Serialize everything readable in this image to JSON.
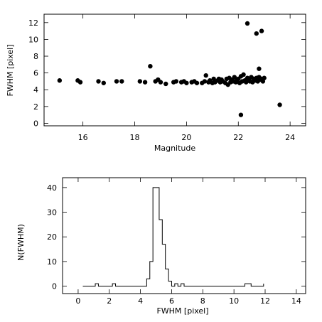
{
  "chart_data": [
    {
      "type": "scatter",
      "xlabel": "Magnitude",
      "ylabel": "FWHM [pixel]",
      "xlim": [
        14.5,
        24.6
      ],
      "ylim": [
        -0.3,
        13
      ],
      "x_ticks": [
        16,
        18,
        20,
        22,
        24
      ],
      "y_ticks": [
        0,
        2,
        4,
        6,
        8,
        10,
        12
      ],
      "grid": false,
      "points": [
        [
          15.1,
          5.1
        ],
        [
          15.8,
          5.1
        ],
        [
          15.9,
          4.9
        ],
        [
          16.6,
          5.0
        ],
        [
          16.8,
          4.8
        ],
        [
          17.3,
          5.0
        ],
        [
          17.5,
          5.0
        ],
        [
          18.2,
          5.0
        ],
        [
          18.4,
          4.9
        ],
        [
          18.6,
          6.8
        ],
        [
          18.8,
          5.0
        ],
        [
          18.9,
          5.2
        ],
        [
          19.0,
          4.9
        ],
        [
          19.2,
          4.7
        ],
        [
          19.5,
          4.9
        ],
        [
          19.6,
          5.0
        ],
        [
          19.8,
          4.9
        ],
        [
          19.9,
          5.0
        ],
        [
          20.0,
          4.8
        ],
        [
          20.2,
          4.9
        ],
        [
          20.3,
          5.0
        ],
        [
          20.4,
          4.8
        ],
        [
          20.6,
          4.8
        ],
        [
          20.7,
          5.0
        ],
        [
          20.75,
          5.7
        ],
        [
          20.85,
          4.9
        ],
        [
          20.9,
          5.1
        ],
        [
          21.0,
          4.8
        ],
        [
          21.05,
          5.3
        ],
        [
          21.1,
          4.9
        ],
        [
          21.2,
          5.1
        ],
        [
          21.25,
          5.3
        ],
        [
          21.3,
          4.9
        ],
        [
          21.35,
          5.2
        ],
        [
          21.4,
          5.0
        ],
        [
          21.5,
          4.8
        ],
        [
          21.55,
          5.3
        ],
        [
          21.6,
          4.6
        ],
        [
          21.65,
          5.4
        ],
        [
          21.7,
          4.9
        ],
        [
          21.75,
          5.2
        ],
        [
          21.8,
          5.0
        ],
        [
          21.85,
          5.5
        ],
        [
          21.9,
          4.9
        ],
        [
          21.95,
          5.2
        ],
        [
          22.0,
          5.3
        ],
        [
          22.05,
          4.8
        ],
        [
          22.1,
          5.6
        ],
        [
          22.15,
          5.0
        ],
        [
          22.2,
          5.8
        ],
        [
          22.25,
          5.1
        ],
        [
          22.3,
          4.9
        ],
        [
          22.35,
          5.4
        ],
        [
          22.4,
          5.2
        ],
        [
          22.45,
          5.0
        ],
        [
          22.5,
          5.5
        ],
        [
          22.55,
          4.9
        ],
        [
          22.6,
          5.3
        ],
        [
          22.65,
          5.1
        ],
        [
          22.7,
          5.4
        ],
        [
          22.75,
          5.0
        ],
        [
          22.8,
          5.5
        ],
        [
          22.85,
          5.2
        ],
        [
          22.9,
          5.3
        ],
        [
          22.95,
          5.0
        ],
        [
          23.0,
          5.4
        ],
        [
          22.8,
          6.5
        ],
        [
          22.35,
          11.9
        ],
        [
          22.7,
          10.7
        ],
        [
          22.9,
          11.0
        ],
        [
          22.1,
          1.0
        ],
        [
          23.6,
          2.2
        ]
      ]
    },
    {
      "type": "histogram",
      "xlabel": "FWHM [pixel]",
      "ylabel": "N(FWHM)",
      "xlim": [
        -1,
        14.6
      ],
      "ylim": [
        -3,
        44
      ],
      "x_ticks": [
        0,
        2,
        4,
        6,
        8,
        10,
        12,
        14
      ],
      "y_ticks": [
        0,
        10,
        20,
        30,
        40
      ],
      "grid": false,
      "bins": [
        [
          0.3,
          0
        ],
        [
          1.0,
          0
        ],
        [
          1.1,
          1
        ],
        [
          1.3,
          0
        ],
        [
          2.1,
          0
        ],
        [
          2.2,
          1
        ],
        [
          2.4,
          0
        ],
        [
          4.2,
          0
        ],
        [
          4.4,
          3
        ],
        [
          4.6,
          10
        ],
        [
          4.8,
          40
        ],
        [
          5.0,
          40
        ],
        [
          5.2,
          27
        ],
        [
          5.4,
          17
        ],
        [
          5.6,
          7
        ],
        [
          5.8,
          2
        ],
        [
          6.0,
          0
        ],
        [
          6.2,
          1
        ],
        [
          6.4,
          0
        ],
        [
          6.6,
          1
        ],
        [
          6.8,
          0
        ],
        [
          10.6,
          0
        ],
        [
          10.7,
          1
        ],
        [
          11.0,
          1
        ],
        [
          11.1,
          0
        ],
        [
          11.8,
          0
        ],
        [
          11.9,
          1
        ]
      ]
    }
  ]
}
